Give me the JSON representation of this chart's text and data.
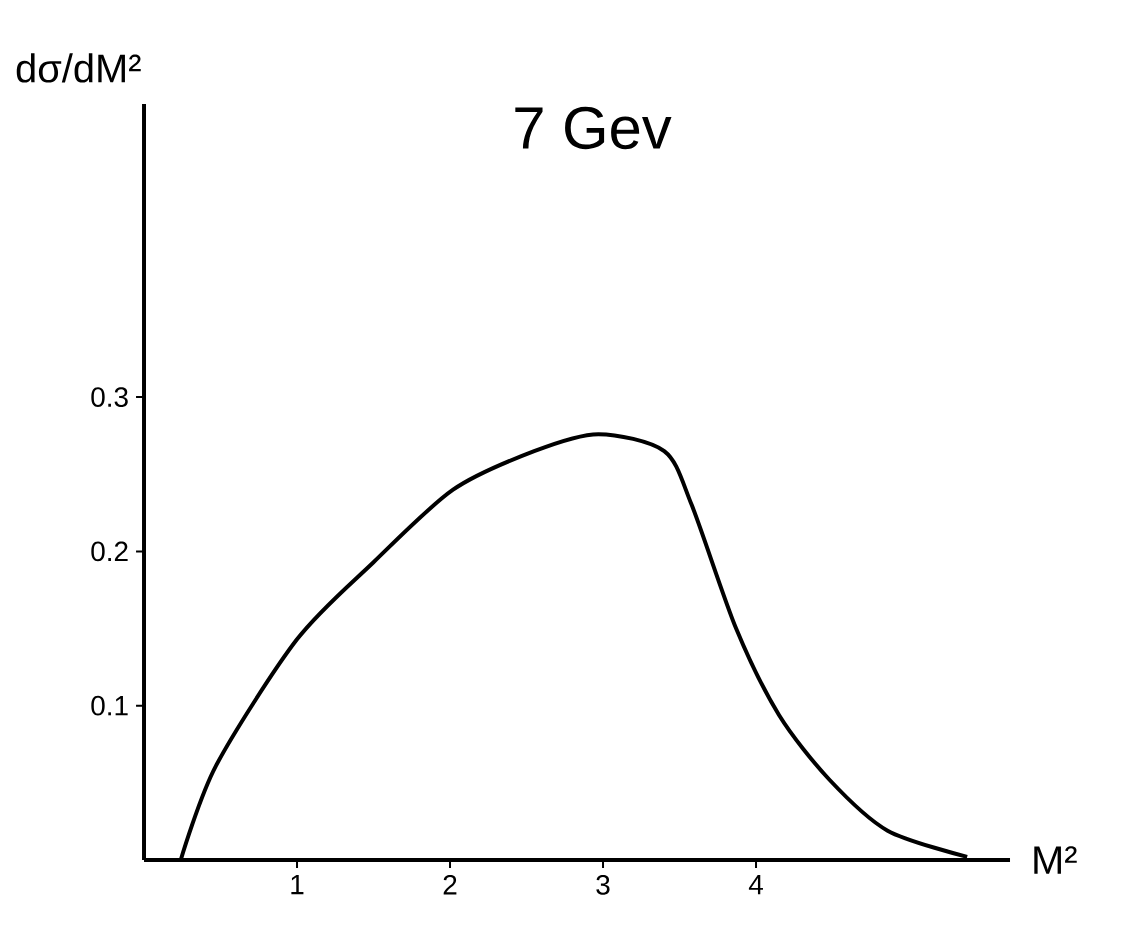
{
  "chart_data": {
    "type": "line",
    "title": "7 Gev",
    "xlabel": "M²",
    "ylabel": "dσ/dM²",
    "x": [
      0.24,
      0.47,
      1.0,
      1.5,
      2.02,
      2.55,
      2.97,
      3.4,
      3.58,
      3.87,
      4.15,
      4.48,
      4.86,
      5.38
    ],
    "series": [
      {
        "color": "#000000",
        "values": [
          0,
          0.061,
          0.143,
          0.193,
          0.24,
          0.265,
          0.276,
          0.265,
          0.23,
          0.15,
          0.094,
          0.052,
          0.019,
          0.002
        ]
      }
    ],
    "xlim": [
      0,
      5.66
    ],
    "ylim": [
      0,
      0.49
    ],
    "xticks": [
      1,
      2,
      3,
      4
    ],
    "yticks": [
      0.1,
      0.2,
      0.3
    ],
    "grid": false,
    "marker": "none",
    "line_style": "solid"
  }
}
